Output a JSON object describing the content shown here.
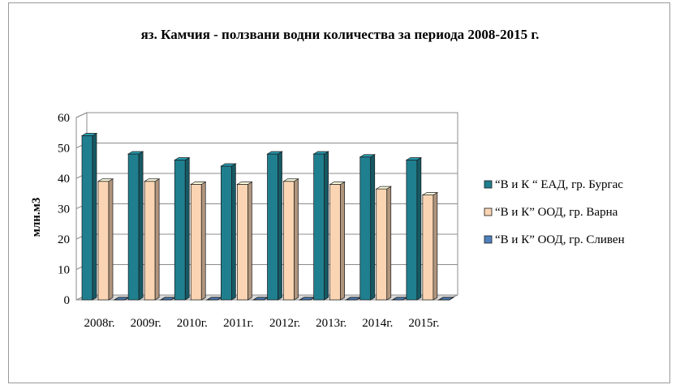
{
  "chart_data": {
    "type": "bar",
    "title": "яз. Камчия - ползвани водни количества за периода 2008-2015 г.",
    "ylabel": "млн.м3",
    "xlabel": "",
    "ylim": [
      0,
      60
    ],
    "yticks": [
      0,
      10,
      20,
      30,
      40,
      50,
      60
    ],
    "grid": true,
    "three_d": true,
    "legend_position": "right",
    "categories": [
      "2008г.",
      "2009г.",
      "2010г.",
      "2011г.",
      "2012г.",
      "2013г.",
      "2014г.",
      "2015г."
    ],
    "series": [
      {
        "name": "“В и К “ ЕАД, гр. Бургас",
        "color": "#1f7f8f",
        "values": [
          54,
          48,
          46,
          44,
          48,
          48,
          47,
          46
        ]
      },
      {
        "name": "“В и К” ООД, гр. Варна",
        "color": "#fbd5b3",
        "values": [
          39,
          39,
          38,
          38,
          39,
          38,
          36.5,
          34.5
        ]
      },
      {
        "name": "“В и К” ООД, гр. Сливен",
        "color": "#4f81bd",
        "values": [
          0,
          0,
          0,
          0,
          0,
          0,
          0,
          0
        ]
      }
    ]
  }
}
